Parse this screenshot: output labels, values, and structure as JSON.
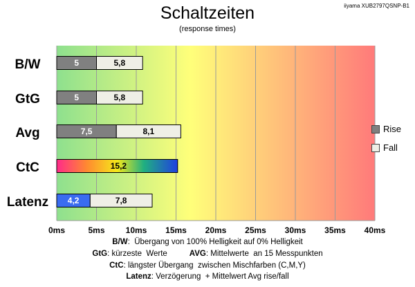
{
  "model": "iiyama XUB2797QSNP-B1",
  "chart_data": {
    "type": "bar",
    "orientation": "horizontal",
    "stacked": true,
    "title": "Schaltzeiten",
    "subtitle": "(response times)",
    "categories": [
      "B/W",
      "GtG",
      "Avg",
      "CtC",
      "Latenz"
    ],
    "series": [
      {
        "name": "Rise",
        "color": "#808080",
        "values": [
          5,
          5,
          7.5,
          null,
          4.2
        ],
        "labels": [
          "5",
          "5",
          "7,5",
          "",
          "4,2"
        ]
      },
      {
        "name": "Fall",
        "color": "#efefe6",
        "values": [
          5.8,
          5.8,
          8.1,
          null,
          7.8
        ],
        "labels": [
          "5,8",
          "5,8",
          "8,1",
          "",
          "7,8"
        ]
      },
      {
        "name": "",
        "values": [
          null,
          null,
          null,
          15.2,
          null
        ],
        "labels": [
          "",
          "",
          "",
          "15,2",
          ""
        ]
      }
    ],
    "latenz_rise_color": "#3a6cf0",
    "xlim": [
      0,
      40
    ],
    "xticks": [
      "0ms",
      "5ms",
      "10ms",
      "15ms",
      "20ms",
      "25ms",
      "30ms",
      "35ms",
      "40ms"
    ],
    "grid": true,
    "legend": "right",
    "background_gradient": [
      "#8ee08e",
      "#ffff7a",
      "#ff7a7a"
    ]
  },
  "descriptions": [
    {
      "parts": [
        {
          "b": "B/W"
        },
        {
          "t": ":  Übergang von 100% Helligkeit auf 0% Helligkeit"
        }
      ]
    },
    {
      "parts": [
        {
          "b": "GtG"
        },
        {
          "t": ": kürzeste  Werte          "
        },
        {
          "b": "AVG"
        },
        {
          "t": ": Mittelwerte  an 15 Messpunkten"
        }
      ]
    },
    {
      "parts": [
        {
          "b": "CtC"
        },
        {
          "t": ": längster Übergang  zwischen Mischfarben (C,M,Y)"
        }
      ]
    },
    {
      "parts": [
        {
          "b": "Latenz"
        },
        {
          "t": ": Verzögerung  + Mittelwert Avg rise/fall"
        }
      ]
    }
  ]
}
